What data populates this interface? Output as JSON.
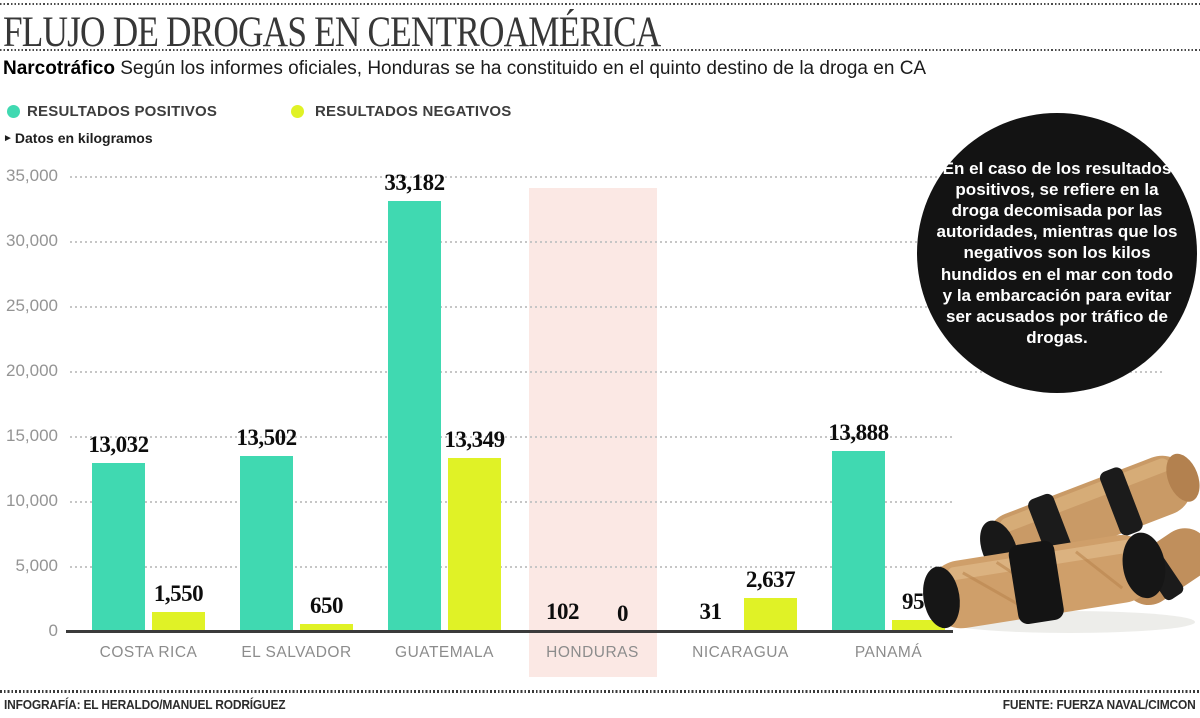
{
  "header": {
    "title": "FLUJO DE DROGAS EN CENTROAMÉRICA",
    "kicker_bold": "Narcotráfico",
    "kicker_rest": " Según los informes oficiales, Honduras se ha constituido en el quinto destino de la droga en CA"
  },
  "legend": {
    "positive_label": "RESULTADOS POSITIVOS",
    "negative_label": "RESULTADOS NEGATIVOS"
  },
  "units_note": "Datos en kilogramos",
  "annotation": {
    "text": "En el caso de los resultados positivos, se refiere en la droga decomisada por las autoridades, mientras que los negativos son los kilos hundidos en el mar con todo y la embarcación para evitar ser acusados por tráfico de drogas."
  },
  "footer": {
    "left": "INFOGRAFÍA: EL HERALDO/MANUEL RODRÍGUEZ",
    "right": "FUENTE: FUERZA NAVAL/CIMCON"
  },
  "colors": {
    "positive": "#40d9b1",
    "negative": "#e0f226",
    "highlight_band": "#fbe8e4",
    "baseline": "#3b3b3b",
    "circle_bg": "#131313"
  },
  "chart_data": {
    "type": "bar",
    "title": "FLUJO DE DROGAS EN CENTROAMÉRICA",
    "units": "kilogramos",
    "categories": [
      "COSTA RICA",
      "EL SALVADOR",
      "GUATEMALA",
      "HONDURAS",
      "NICARAGUA",
      "PANAMÁ"
    ],
    "series": [
      {
        "name": "RESULTADOS POSITIVOS",
        "color": "#40d9b1",
        "values": [
          13032,
          13502,
          33182,
          102,
          31,
          13888
        ],
        "labels": [
          "13,032",
          "13,502",
          "33,182",
          "102",
          "31",
          "13,888"
        ]
      },
      {
        "name": "RESULTADOS NEGATIVOS",
        "color": "#e0f226",
        "values": [
          1550,
          650,
          13349,
          0,
          2637,
          950
        ],
        "labels": [
          "1,550",
          "650",
          "13,349",
          "0",
          "2,637",
          "950"
        ]
      }
    ],
    "ylim": [
      0,
      35000
    ],
    "yticks": [
      0,
      5000,
      10000,
      15000,
      20000,
      25000,
      30000,
      35000
    ],
    "ytick_labels": [
      "0",
      "5,000",
      "10,000",
      "15,000",
      "20,000",
      "25,000",
      "30,000",
      "35,000"
    ],
    "highlight_category": "HONDURAS",
    "grid": "dotted-horizontal",
    "legend_position": "top-left"
  }
}
